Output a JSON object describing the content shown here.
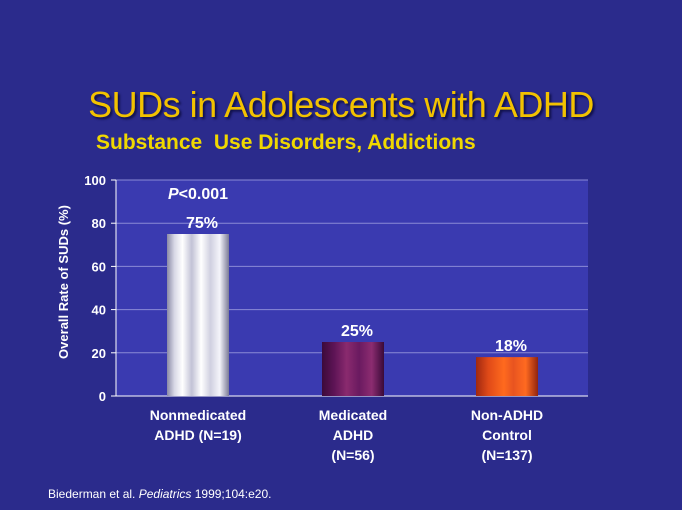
{
  "title": "SUDs in Adolescents with ADHD",
  "subtitle": "Substance  Use Disorders, Addictions",
  "annotation": {
    "prefix": "P",
    "rest": "<0.001"
  },
  "citation": {
    "authors": "Biederman et al. ",
    "journal": "Pediatrics",
    "details": " 1999;104:e20."
  },
  "colors": {
    "background": "#2b2b8c",
    "title": "#f2c200",
    "subtitle": "#f0d800",
    "plot_area": "#3a3ab0"
  },
  "chart_data": {
    "type": "bar",
    "categories": [
      [
        "Nonmedicated",
        "ADHD (N=19)"
      ],
      [
        "Medicated",
        "ADHD",
        "(N=56)"
      ],
      [
        "Non-ADHD",
        "Control",
        "(N=137)"
      ]
    ],
    "values": [
      75,
      25,
      18
    ],
    "data_labels": [
      "75%",
      "25%",
      "18%"
    ],
    "bar_colors": [
      "#e6e6ee",
      "#6a1a60",
      "#d84418"
    ],
    "ylabel": "Overall Rate of SUDs (%)",
    "ylim": [
      0,
      100
    ],
    "yticks": [
      0,
      20,
      40,
      60,
      80,
      100
    ],
    "grid": true
  }
}
